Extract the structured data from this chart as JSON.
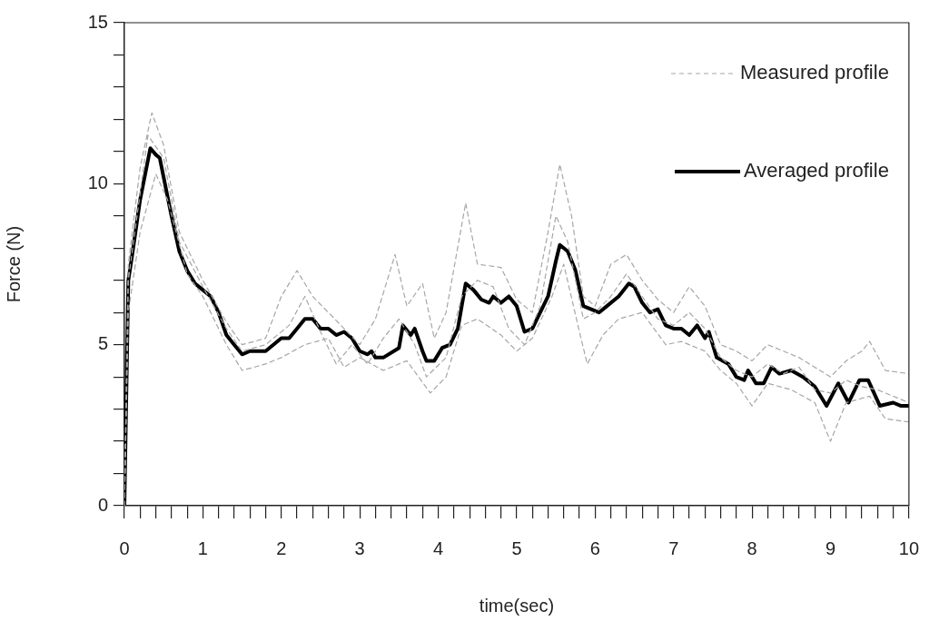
{
  "chart_data": {
    "type": "line",
    "xlabel": "time(sec)",
    "ylabel": "Force (N)",
    "legend": "top right",
    "grid": false,
    "marker": "none",
    "xlim": [
      0,
      10
    ],
    "ylim": [
      0,
      15
    ],
    "xticks": [
      0,
      {
        "value": 0.2,
        "label": null
      },
      {
        "value": 0.4,
        "label": null
      },
      {
        "value": 0.6,
        "label": null
      },
      {
        "value": 0.8,
        "label": null
      },
      1,
      {
        "value": 1.2,
        "label": null
      },
      {
        "value": 1.4,
        "label": null
      },
      {
        "value": 1.6,
        "label": null
      },
      {
        "value": 1.8,
        "label": null
      },
      2,
      {
        "value": 2.2,
        "label": null
      },
      {
        "value": 2.4,
        "label": null
      },
      {
        "value": 2.6,
        "label": null
      },
      {
        "value": 2.8,
        "label": null
      },
      3,
      {
        "value": 3.2,
        "label": null
      },
      {
        "value": 3.4,
        "label": null
      },
      {
        "value": 3.6,
        "label": null
      },
      {
        "value": 3.8,
        "label": null
      },
      4,
      {
        "value": 4.2,
        "label": null
      },
      {
        "value": 4.4,
        "label": null
      },
      {
        "value": 4.6,
        "label": null
      },
      {
        "value": 4.8,
        "label": null
      },
      5,
      {
        "value": 5.2,
        "label": null
      },
      {
        "value": 5.4,
        "label": null
      },
      {
        "value": 5.6,
        "label": null
      },
      {
        "value": 5.8,
        "label": null
      },
      6,
      {
        "value": 6.2,
        "label": null
      },
      {
        "value": 6.4,
        "label": null
      },
      {
        "value": 6.6,
        "label": null
      },
      {
        "value": 6.8,
        "label": null
      },
      7,
      {
        "value": 7.2,
        "label": null
      },
      {
        "value": 7.4,
        "label": null
      },
      {
        "value": 7.6,
        "label": null
      },
      {
        "value": 7.8,
        "label": null
      },
      8,
      {
        "value": 8.2,
        "label": null
      },
      {
        "value": 8.4,
        "label": null
      },
      {
        "value": 8.6,
        "label": null
      },
      {
        "value": 8.8,
        "label": null
      },
      9,
      {
        "value": 9.2,
        "label": null
      },
      {
        "value": 9.4,
        "label": null
      },
      {
        "value": 9.6,
        "label": null
      },
      {
        "value": 9.8,
        "label": null
      },
      10
    ],
    "yticks": [
      0,
      {
        "value": 1,
        "label": null
      },
      {
        "value": 2,
        "label": null
      },
      {
        "value": 3,
        "label": null
      },
      {
        "value": 4,
        "label": null
      },
      5,
      {
        "value": 6,
        "label": null
      },
      {
        "value": 7,
        "label": null
      },
      {
        "value": 8,
        "label": null
      },
      {
        "value": 9,
        "label": null
      },
      10,
      {
        "value": 11,
        "label": null
      },
      {
        "value": 12,
        "label": null
      },
      {
        "value": 13,
        "label": null
      },
      {
        "value": 14,
        "label": null
      },
      15
    ],
    "series": [
      {
        "name": "Measured profile",
        "color": "#a6a6a6",
        "line_style": "dashed",
        "x": [
          0,
          0.05,
          0.2,
          0.35,
          0.5,
          0.7,
          1.0,
          1.3,
          1.5,
          1.8,
          2.0,
          2.2,
          2.4,
          2.6,
          2.8,
          3.0,
          3.2,
          3.45,
          3.6,
          3.8,
          3.95,
          4.1,
          4.35,
          4.5,
          4.8,
          5.0,
          5.2,
          5.4,
          5.55,
          5.7,
          5.85,
          6.0,
          6.2,
          6.4,
          6.6,
          6.8,
          7.0,
          7.2,
          7.4,
          7.6,
          7.8,
          8.0,
          8.2,
          8.4,
          8.6,
          8.8,
          9.0,
          9.2,
          9.4,
          9.5,
          9.7,
          10
        ],
        "values": [
          0,
          7.5,
          10.5,
          12.2,
          11.2,
          8.5,
          7.0,
          5.7,
          5.0,
          5.2,
          6.5,
          7.3,
          6.5,
          6.0,
          5.5,
          5.0,
          5.8,
          7.8,
          6.2,
          6.9,
          5.2,
          6.0,
          9.4,
          7.5,
          7.4,
          6.4,
          6.0,
          8.5,
          10.6,
          9.0,
          6.5,
          6.2,
          7.5,
          7.8,
          7.0,
          6.4,
          6.0,
          6.8,
          6.2,
          5.0,
          4.8,
          4.5,
          5.0,
          4.8,
          4.6,
          4.3,
          4.0,
          4.5,
          4.8,
          5.1,
          4.2,
          4.1
        ]
      },
      {
        "color": "#a6a6a6",
        "line_style": "dashed",
        "x": [
          0,
          0.05,
          0.2,
          0.4,
          0.55,
          0.8,
          1.0,
          1.3,
          1.5,
          1.8,
          2.0,
          2.3,
          2.6,
          2.8,
          3.0,
          3.3,
          3.6,
          3.9,
          4.1,
          4.3,
          4.5,
          4.8,
          5.0,
          5.2,
          5.45,
          5.6,
          5.8,
          5.9,
          6.1,
          6.3,
          6.6,
          6.9,
          7.1,
          7.4,
          7.6,
          7.8,
          8.0,
          8.2,
          8.5,
          8.8,
          9.0,
          9.2,
          9.5,
          9.7,
          10
        ],
        "values": [
          0,
          6.0,
          8.5,
          10.3,
          9.5,
          7.2,
          6.5,
          5.0,
          4.2,
          4.4,
          4.6,
          5.0,
          5.2,
          4.3,
          4.6,
          4.2,
          4.5,
          3.5,
          4.0,
          5.6,
          5.8,
          5.3,
          4.8,
          5.2,
          6.5,
          7.5,
          5.4,
          4.4,
          5.3,
          5.8,
          6.0,
          5.0,
          5.1,
          4.8,
          4.2,
          3.8,
          3.1,
          3.8,
          3.6,
          3.2,
          2.0,
          3.2,
          3.4,
          2.7,
          2.6
        ]
      },
      {
        "color": "#a6a6a6",
        "line_style": "dashed",
        "x": [
          0,
          0.05,
          0.3,
          0.5,
          0.7,
          1.0,
          1.3,
          1.5,
          1.8,
          2.1,
          2.3,
          2.5,
          2.7,
          2.9,
          3.1,
          3.3,
          3.5,
          3.7,
          3.85,
          4.1,
          4.3,
          4.5,
          4.7,
          4.9,
          5.1,
          5.3,
          5.5,
          5.65,
          5.85,
          6.0,
          6.2,
          6.4,
          6.6,
          6.8,
          7.0,
          7.2,
          7.4,
          7.6,
          7.8,
          8.0,
          8.2,
          8.4,
          8.6,
          8.8,
          9.0,
          9.2,
          9.4,
          9.6,
          9.8,
          10
        ],
        "values": [
          0,
          7.0,
          11.5,
          10.8,
          8.2,
          6.8,
          5.5,
          4.8,
          5.0,
          5.6,
          6.5,
          5.4,
          4.4,
          5.0,
          4.4,
          5.2,
          5.8,
          5.0,
          4.0,
          4.6,
          6.5,
          7.0,
          6.8,
          5.5,
          5.0,
          6.2,
          9.0,
          8.2,
          5.8,
          6.0,
          6.5,
          7.2,
          6.5,
          5.8,
          5.6,
          6.0,
          5.5,
          4.6,
          4.2,
          4.0,
          4.4,
          4.1,
          4.3,
          3.6,
          3.5,
          3.9,
          3.7,
          3.6,
          3.4,
          3.2
        ]
      },
      {
        "name": "Averaged profile",
        "color": "#000000",
        "line_style": "solid",
        "x": [
          0,
          0.05,
          0.1,
          0.2,
          0.33,
          0.4,
          0.45,
          0.5,
          0.6,
          0.7,
          0.8,
          0.9,
          1.0,
          1.1,
          1.2,
          1.3,
          1.4,
          1.5,
          1.6,
          1.8,
          2.0,
          2.1,
          2.2,
          2.3,
          2.4,
          2.5,
          2.6,
          2.7,
          2.8,
          2.9,
          3.0,
          3.1,
          3.15,
          3.2,
          3.3,
          3.5,
          3.55,
          3.65,
          3.7,
          3.8,
          3.85,
          3.95,
          4.05,
          4.15,
          4.25,
          4.35,
          4.45,
          4.55,
          4.65,
          4.7,
          4.8,
          4.9,
          5.0,
          5.1,
          5.2,
          5.3,
          5.4,
          5.5,
          5.55,
          5.65,
          5.75,
          5.85,
          5.95,
          6.05,
          6.15,
          6.3,
          6.43,
          6.5,
          6.6,
          6.7,
          6.8,
          6.9,
          7.0,
          7.1,
          7.2,
          7.3,
          7.4,
          7.45,
          7.55,
          7.7,
          7.8,
          7.9,
          7.95,
          8.05,
          8.15,
          8.25,
          8.35,
          8.5,
          8.65,
          8.8,
          8.95,
          9.1,
          9.23,
          9.37,
          9.48,
          9.63,
          9.8,
          9.9,
          10
        ],
        "values": [
          0,
          7.0,
          7.8,
          9.5,
          11.1,
          10.9,
          10.8,
          10.2,
          9.0,
          7.9,
          7.3,
          6.9,
          6.7,
          6.5,
          6.0,
          5.3,
          5.0,
          4.7,
          4.8,
          4.8,
          5.2,
          5.2,
          5.5,
          5.8,
          5.8,
          5.5,
          5.5,
          5.3,
          5.4,
          5.2,
          4.8,
          4.7,
          4.8,
          4.6,
          4.6,
          4.9,
          5.6,
          5.3,
          5.5,
          4.8,
          4.5,
          4.5,
          4.9,
          5.0,
          5.5,
          6.9,
          6.7,
          6.4,
          6.3,
          6.5,
          6.3,
          6.5,
          6.2,
          5.4,
          5.5,
          6.0,
          6.5,
          7.6,
          8.1,
          7.9,
          7.3,
          6.2,
          6.1,
          6.0,
          6.2,
          6.5,
          6.9,
          6.8,
          6.3,
          6.0,
          6.1,
          5.6,
          5.5,
          5.5,
          5.3,
          5.6,
          5.2,
          5.4,
          4.6,
          4.4,
          4.0,
          3.9,
          4.2,
          3.8,
          3.8,
          4.3,
          4.1,
          4.2,
          4.0,
          3.7,
          3.1,
          3.8,
          3.2,
          3.9,
          3.9,
          3.1,
          3.2,
          3.1,
          3.1
        ]
      }
    ]
  }
}
